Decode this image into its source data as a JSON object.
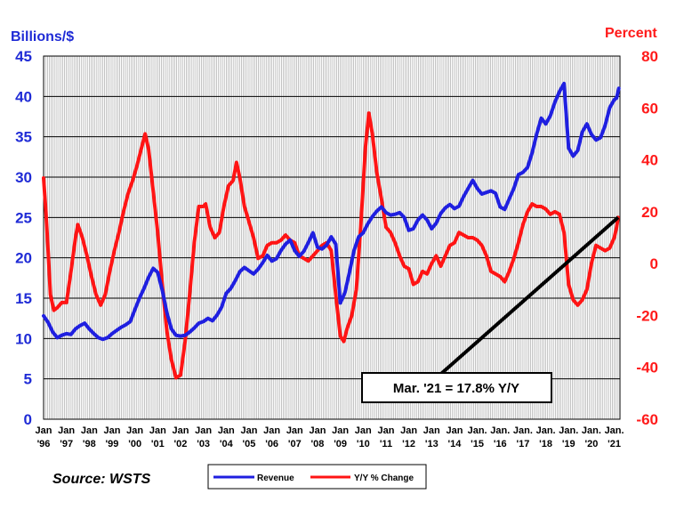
{
  "chart_data": {
    "type": "line",
    "left_axis_label": "Billions/$",
    "right_axis_label": "Percent",
    "left_ylim": [
      0,
      45
    ],
    "right_ylim": [
      -60,
      80
    ],
    "left_ticks": [
      "0",
      "5",
      "10",
      "15",
      "20",
      "25",
      "30",
      "35",
      "40",
      "45"
    ],
    "right_ticks": [
      "-60",
      "-40",
      "-20",
      "0",
      "20",
      "40",
      "60",
      "80"
    ],
    "x_tick_labels": [
      {
        "top": "Jan",
        "bottom": "'96"
      },
      {
        "top": "Jan",
        "bottom": "'97"
      },
      {
        "top": "Jan",
        "bottom": "'98"
      },
      {
        "top": "Jan",
        "bottom": "'99"
      },
      {
        "top": "Jan",
        "bottom": "'00"
      },
      {
        "top": "Jan",
        "bottom": "'01"
      },
      {
        "top": "Jan",
        "bottom": "'02"
      },
      {
        "top": "Jan",
        "bottom": "'03"
      },
      {
        "top": "Jan",
        "bottom": "'04"
      },
      {
        "top": "Jan",
        "bottom": "'05"
      },
      {
        "top": "Jan",
        "bottom": "'06"
      },
      {
        "top": "Jan",
        "bottom": "'07"
      },
      {
        "top": "Jan",
        "bottom": "'08"
      },
      {
        "top": "Jan",
        "bottom": "'09"
      },
      {
        "top": "Jan",
        "bottom": "'10"
      },
      {
        "top": "Jan",
        "bottom": "'11"
      },
      {
        "top": "Jan",
        "bottom": "'12"
      },
      {
        "top": "Jan",
        "bottom": "'13"
      },
      {
        "top": "Jan",
        "bottom": "'14"
      },
      {
        "top": "Jan.",
        "bottom": "'15"
      },
      {
        "top": "Jan.",
        "bottom": "'16"
      },
      {
        "top": "Jan.",
        "bottom": "'17"
      },
      {
        "top": "Jan.",
        "bottom": "'18"
      },
      {
        "top": "Jan.",
        "bottom": "'19"
      },
      {
        "top": "Jan.",
        "bottom": "'20"
      },
      {
        "top": "Jan.",
        "bottom": "'21"
      }
    ],
    "x_range_years": [
      1996,
      2021.25
    ],
    "grid": "vertical monthly gridlines, horizontal at left-axis ticks",
    "legend_placement": "bottom-center",
    "source": "Source: WSTS",
    "annotation": {
      "text": "Mar. '21 = 17.8% Y/Y",
      "target": {
        "year": 2021.17,
        "pct": 17.8
      },
      "box_anchor": {
        "year": 2013.2,
        "left_value": 5.1
      }
    },
    "series": [
      {
        "name": "Revenue",
        "axis": "left",
        "color": "#1f1fe0",
        "points": [
          [
            1996.0,
            12.8
          ],
          [
            1996.2,
            12.0
          ],
          [
            1996.4,
            10.8
          ],
          [
            1996.6,
            10.1
          ],
          [
            1996.8,
            10.4
          ],
          [
            1997.0,
            10.6
          ],
          [
            1997.2,
            10.5
          ],
          [
            1997.4,
            11.2
          ],
          [
            1997.6,
            11.6
          ],
          [
            1997.8,
            11.9
          ],
          [
            1998.0,
            11.2
          ],
          [
            1998.2,
            10.6
          ],
          [
            1998.4,
            10.1
          ],
          [
            1998.6,
            9.9
          ],
          [
            1998.8,
            10.1
          ],
          [
            1999.0,
            10.6
          ],
          [
            1999.2,
            11.0
          ],
          [
            1999.4,
            11.4
          ],
          [
            1999.6,
            11.7
          ],
          [
            1999.8,
            12.1
          ],
          [
            2000.0,
            13.6
          ],
          [
            2000.2,
            15.0
          ],
          [
            2000.4,
            16.2
          ],
          [
            2000.6,
            17.6
          ],
          [
            2000.8,
            18.7
          ],
          [
            2001.0,
            18.2
          ],
          [
            2001.2,
            16.0
          ],
          [
            2001.4,
            13.2
          ],
          [
            2001.6,
            11.2
          ],
          [
            2001.8,
            10.4
          ],
          [
            2002.0,
            10.3
          ],
          [
            2002.2,
            10.4
          ],
          [
            2002.4,
            10.8
          ],
          [
            2002.6,
            11.3
          ],
          [
            2002.8,
            11.9
          ],
          [
            2003.0,
            12.1
          ],
          [
            2003.2,
            12.5
          ],
          [
            2003.4,
            12.2
          ],
          [
            2003.6,
            12.9
          ],
          [
            2003.8,
            13.9
          ],
          [
            2004.0,
            15.6
          ],
          [
            2004.2,
            16.2
          ],
          [
            2004.4,
            17.2
          ],
          [
            2004.6,
            18.3
          ],
          [
            2004.8,
            18.8
          ],
          [
            2005.0,
            18.4
          ],
          [
            2005.2,
            18.0
          ],
          [
            2005.4,
            18.6
          ],
          [
            2005.6,
            19.4
          ],
          [
            2005.8,
            20.3
          ],
          [
            2006.0,
            19.6
          ],
          [
            2006.2,
            19.9
          ],
          [
            2006.4,
            20.9
          ],
          [
            2006.6,
            21.7
          ],
          [
            2006.8,
            22.2
          ],
          [
            2007.0,
            20.9
          ],
          [
            2007.2,
            20.2
          ],
          [
            2007.4,
            20.8
          ],
          [
            2007.6,
            21.9
          ],
          [
            2007.8,
            23.1
          ],
          [
            2008.0,
            21.3
          ],
          [
            2008.2,
            21.1
          ],
          [
            2008.4,
            21.6
          ],
          [
            2008.6,
            22.6
          ],
          [
            2008.8,
            21.7
          ],
          [
            2009.0,
            14.4
          ],
          [
            2009.2,
            15.7
          ],
          [
            2009.4,
            18.2
          ],
          [
            2009.6,
            20.9
          ],
          [
            2009.8,
            22.6
          ],
          [
            2010.0,
            23.1
          ],
          [
            2010.2,
            24.2
          ],
          [
            2010.4,
            25.1
          ],
          [
            2010.6,
            25.8
          ],
          [
            2010.8,
            26.3
          ],
          [
            2011.0,
            25.6
          ],
          [
            2011.2,
            25.3
          ],
          [
            2011.4,
            25.4
          ],
          [
            2011.6,
            25.6
          ],
          [
            2011.8,
            25.0
          ],
          [
            2012.0,
            23.4
          ],
          [
            2012.2,
            23.6
          ],
          [
            2012.4,
            24.7
          ],
          [
            2012.6,
            25.3
          ],
          [
            2012.8,
            24.7
          ],
          [
            2013.0,
            23.6
          ],
          [
            2013.2,
            24.3
          ],
          [
            2013.4,
            25.5
          ],
          [
            2013.6,
            26.2
          ],
          [
            2013.8,
            26.6
          ],
          [
            2014.0,
            26.1
          ],
          [
            2014.2,
            26.4
          ],
          [
            2014.4,
            27.6
          ],
          [
            2014.6,
            28.6
          ],
          [
            2014.8,
            29.6
          ],
          [
            2015.0,
            28.6
          ],
          [
            2015.2,
            27.9
          ],
          [
            2015.4,
            28.1
          ],
          [
            2015.6,
            28.3
          ],
          [
            2015.8,
            28.0
          ],
          [
            2016.0,
            26.3
          ],
          [
            2016.2,
            26.0
          ],
          [
            2016.4,
            27.3
          ],
          [
            2016.6,
            28.6
          ],
          [
            2016.8,
            30.3
          ],
          [
            2017.0,
            30.6
          ],
          [
            2017.2,
            31.2
          ],
          [
            2017.4,
            33.0
          ],
          [
            2017.6,
            35.3
          ],
          [
            2017.8,
            37.3
          ],
          [
            2018.0,
            36.6
          ],
          [
            2018.2,
            37.6
          ],
          [
            2018.4,
            39.3
          ],
          [
            2018.6,
            40.6
          ],
          [
            2018.8,
            41.6
          ],
          [
            2019.0,
            33.6
          ],
          [
            2019.2,
            32.6
          ],
          [
            2019.4,
            33.3
          ],
          [
            2019.6,
            35.6
          ],
          [
            2019.8,
            36.6
          ],
          [
            2020.0,
            35.3
          ],
          [
            2020.2,
            34.6
          ],
          [
            2020.4,
            34.9
          ],
          [
            2020.6,
            36.4
          ],
          [
            2020.8,
            38.6
          ],
          [
            2021.0,
            39.6
          ],
          [
            2021.1,
            39.8
          ],
          [
            2021.2,
            41.0
          ]
        ]
      },
      {
        "name": "Y/Y % Change",
        "axis": "right",
        "color": "#ff1414",
        "points": [
          [
            1996.0,
            33.0
          ],
          [
            1996.1,
            20.0
          ],
          [
            1996.2,
            5.0
          ],
          [
            1996.3,
            -12.0
          ],
          [
            1996.45,
            -18.0
          ],
          [
            1996.6,
            -17.0
          ],
          [
            1996.8,
            -15.0
          ],
          [
            1997.0,
            -15.0
          ],
          [
            1997.2,
            -3.0
          ],
          [
            1997.4,
            10.0
          ],
          [
            1997.5,
            15.0
          ],
          [
            1997.7,
            10.0
          ],
          [
            1997.9,
            3.0
          ],
          [
            1998.1,
            -5.0
          ],
          [
            1998.3,
            -12.0
          ],
          [
            1998.5,
            -16.0
          ],
          [
            1998.7,
            -12.0
          ],
          [
            1998.9,
            -3.0
          ],
          [
            1999.1,
            5.0
          ],
          [
            1999.3,
            12.0
          ],
          [
            1999.5,
            20.0
          ],
          [
            1999.7,
            27.0
          ],
          [
            1999.9,
            32.0
          ],
          [
            2000.1,
            38.0
          ],
          [
            2000.3,
            45.0
          ],
          [
            2000.45,
            50.0
          ],
          [
            2000.6,
            44.0
          ],
          [
            2000.8,
            28.0
          ],
          [
            2001.0,
            12.0
          ],
          [
            2001.2,
            -8.0
          ],
          [
            2001.4,
            -26.0
          ],
          [
            2001.6,
            -37.0
          ],
          [
            2001.8,
            -44.0
          ],
          [
            2002.0,
            -43.0
          ],
          [
            2002.2,
            -30.0
          ],
          [
            2002.4,
            -12.0
          ],
          [
            2002.6,
            8.0
          ],
          [
            2002.8,
            22.0
          ],
          [
            2003.0,
            22.0
          ],
          [
            2003.1,
            23.0
          ],
          [
            2003.3,
            14.0
          ],
          [
            2003.5,
            10.0
          ],
          [
            2003.7,
            12.0
          ],
          [
            2003.9,
            22.0
          ],
          [
            2004.1,
            30.0
          ],
          [
            2004.3,
            32.0
          ],
          [
            2004.45,
            39.0
          ],
          [
            2004.6,
            33.0
          ],
          [
            2004.8,
            22.0
          ],
          [
            2005.0,
            16.0
          ],
          [
            2005.2,
            10.0
          ],
          [
            2005.4,
            2.0
          ],
          [
            2005.6,
            3.0
          ],
          [
            2005.8,
            7.0
          ],
          [
            2006.0,
            8.0
          ],
          [
            2006.2,
            8.0
          ],
          [
            2006.4,
            9.0
          ],
          [
            2006.6,
            11.0
          ],
          [
            2006.8,
            9.0
          ],
          [
            2007.0,
            8.0
          ],
          [
            2007.2,
            3.0
          ],
          [
            2007.4,
            2.0
          ],
          [
            2007.6,
            1.0
          ],
          [
            2007.8,
            3.0
          ],
          [
            2008.0,
            5.0
          ],
          [
            2008.2,
            7.0
          ],
          [
            2008.4,
            8.0
          ],
          [
            2008.6,
            5.0
          ],
          [
            2008.8,
            -12.0
          ],
          [
            2009.0,
            -28.0
          ],
          [
            2009.15,
            -30.0
          ],
          [
            2009.3,
            -25.0
          ],
          [
            2009.5,
            -20.0
          ],
          [
            2009.7,
            -10.0
          ],
          [
            2009.9,
            15.0
          ],
          [
            2010.1,
            45.0
          ],
          [
            2010.25,
            58.0
          ],
          [
            2010.4,
            50.0
          ],
          [
            2010.6,
            35.0
          ],
          [
            2010.8,
            25.0
          ],
          [
            2011.0,
            14.0
          ],
          [
            2011.2,
            12.0
          ],
          [
            2011.4,
            8.0
          ],
          [
            2011.6,
            3.0
          ],
          [
            2011.8,
            -1.0
          ],
          [
            2012.0,
            -2.0
          ],
          [
            2012.2,
            -8.0
          ],
          [
            2012.4,
            -7.0
          ],
          [
            2012.6,
            -3.0
          ],
          [
            2012.8,
            -4.0
          ],
          [
            2013.0,
            0.0
          ],
          [
            2013.2,
            3.0
          ],
          [
            2013.4,
            -1.0
          ],
          [
            2013.6,
            3.0
          ],
          [
            2013.8,
            7.0
          ],
          [
            2014.0,
            8.0
          ],
          [
            2014.2,
            12.0
          ],
          [
            2014.4,
            11.0
          ],
          [
            2014.6,
            10.0
          ],
          [
            2014.8,
            10.0
          ],
          [
            2015.0,
            9.0
          ],
          [
            2015.2,
            7.0
          ],
          [
            2015.4,
            3.0
          ],
          [
            2015.6,
            -3.0
          ],
          [
            2015.8,
            -4.0
          ],
          [
            2016.0,
            -5.0
          ],
          [
            2016.2,
            -7.0
          ],
          [
            2016.4,
            -3.0
          ],
          [
            2016.6,
            2.0
          ],
          [
            2016.8,
            8.0
          ],
          [
            2017.0,
            15.0
          ],
          [
            2017.2,
            20.0
          ],
          [
            2017.4,
            23.0
          ],
          [
            2017.6,
            22.0
          ],
          [
            2017.8,
            22.0
          ],
          [
            2018.0,
            21.0
          ],
          [
            2018.2,
            19.0
          ],
          [
            2018.4,
            20.0
          ],
          [
            2018.6,
            19.0
          ],
          [
            2018.8,
            12.0
          ],
          [
            2019.0,
            -8.0
          ],
          [
            2019.2,
            -14.0
          ],
          [
            2019.4,
            -16.0
          ],
          [
            2019.6,
            -14.0
          ],
          [
            2019.8,
            -10.0
          ],
          [
            2020.0,
            0.0
          ],
          [
            2020.2,
            7.0
          ],
          [
            2020.4,
            6.0
          ],
          [
            2020.6,
            5.0
          ],
          [
            2020.8,
            6.0
          ],
          [
            2021.0,
            10.0
          ],
          [
            2021.1,
            14.0
          ],
          [
            2021.17,
            17.8
          ]
        ]
      }
    ]
  }
}
